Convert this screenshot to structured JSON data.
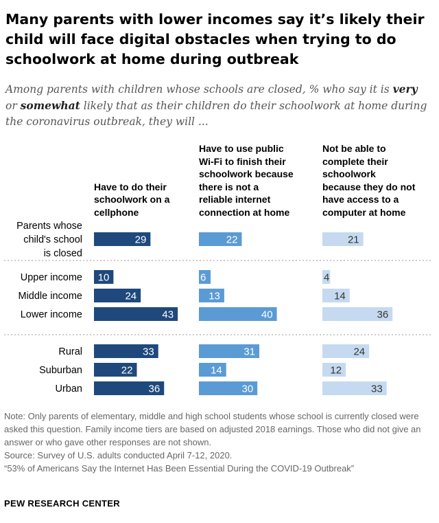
{
  "chart_data": {
    "type": "bar",
    "title": "Many parents with lower incomes say it’s likely their child will face digital obstacles when trying to do schoolwork at home during outbreak",
    "subtitle": {
      "part1": "Among parents with children whose schools are closed, % who say it is ",
      "very": "very",
      "part2": " or ",
      "somewhat": "somewhat",
      "part3": " likely that as their children do their schoolwork at home during the coronavirus outbreak, they will ..."
    },
    "series": [
      {
        "name": "Have to do their schoolwork on a cellphone",
        "color": "#1f497d",
        "values": [
          29,
          10,
          24,
          43,
          33,
          22,
          36
        ]
      },
      {
        "name": "Have to use public Wi-Fi to finish their schoolwork because there is not a reliable internet connection at home",
        "color": "#5b9bd5",
        "values": [
          22,
          6,
          13,
          40,
          31,
          14,
          30
        ]
      },
      {
        "name": "Not be able to complete their schoolwork because they do not have access to a computer at home",
        "color": "#c5daf0",
        "values": [
          21,
          4,
          14,
          36,
          24,
          12,
          33
        ]
      }
    ],
    "groups": [
      {
        "categories": [
          "Parents whose child's school is closed"
        ],
        "dotted_after": true
      },
      {
        "categories": [
          "Upper income",
          "Middle income",
          "Lower income"
        ],
        "dotted_after": true
      },
      {
        "categories": [
          "Rural",
          "Suburban",
          "Urban"
        ],
        "dotted_after": false
      }
    ],
    "row_labels": [
      [
        "Parents whose",
        "child's school",
        "is closed"
      ],
      [
        "Upper income"
      ],
      [
        "Middle income"
      ],
      [
        "Lower income"
      ],
      [
        "Rural"
      ],
      [
        "Suburban"
      ],
      [
        "Urban"
      ]
    ],
    "headings": [
      [
        "Have to do their",
        "schoolwork on a",
        "cellphone"
      ],
      [
        "Have to use public",
        "Wi-Fi to finish their",
        "schoolwork because",
        "there is not a",
        "reliable internet",
        "connection at home"
      ],
      [
        "Not be able to",
        "complete their",
        "schoolwork",
        "because they do not",
        "have access to a",
        "computer at home"
      ]
    ],
    "label_colors": {
      "dark_bar": "#ffffff",
      "light_bar": "#333333"
    }
  },
  "footer": {
    "note": "Note: Only parents of elementary, middle and high school students whose school is currently closed were asked this question. Family income tiers are based on adjusted 2018 earnings. Those who did not give an answer or who gave other responses are not shown.",
    "source": "Source: Survey of U.S. adults conducted April 7-12, 2020.",
    "report": "“53% of Americans Say the Internet Has Been Essential During the COVID-19 Outbreak”",
    "brand": "PEW RESEARCH CENTER"
  }
}
